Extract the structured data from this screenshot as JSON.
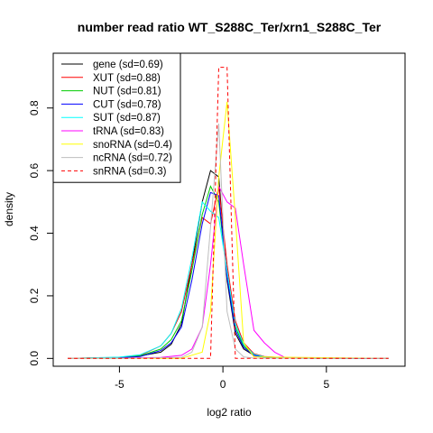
{
  "chart_data": {
    "type": "line",
    "title": "number read ratio WT_S288C_Ter/xrn1_S288C_Ter",
    "xlabel": "log2 ratio",
    "ylabel": "density",
    "xlim": [
      -8.2,
      8.8
    ],
    "ylim": [
      -0.025,
      0.975
    ],
    "xticks": [
      -5,
      0,
      5
    ],
    "yticks": [
      0.0,
      0.2,
      0.4,
      0.6,
      0.8
    ],
    "ytick_labels": [
      "0.0",
      "0.2",
      "0.4",
      "0.6",
      "0.8"
    ],
    "legend_position": "top-left",
    "series": [
      {
        "name": "gene (sd=0.69)",
        "color": "#000000",
        "dash": false,
        "x": [
          -7.5,
          -5,
          -4,
          -3,
          -2.5,
          -2,
          -1.5,
          -1,
          -0.6,
          -0.2,
          0.2,
          0.6,
          1,
          1.5,
          2,
          3,
          8
        ],
        "y": [
          0,
          0.003,
          0.008,
          0.02,
          0.045,
          0.11,
          0.3,
          0.5,
          0.6,
          0.58,
          0.25,
          0.08,
          0.03,
          0.01,
          0.004,
          0.001,
          0
        ]
      },
      {
        "name": "XUT (sd=0.88)",
        "color": "#ff0000",
        "dash": false,
        "x": [
          -7.5,
          -5,
          -4,
          -3,
          -2.5,
          -2,
          -1.5,
          -1,
          -0.6,
          -0.2,
          0.2,
          0.6,
          1,
          1.5,
          2,
          3,
          8
        ],
        "y": [
          0,
          0.003,
          0.01,
          0.04,
          0.08,
          0.15,
          0.3,
          0.45,
          0.43,
          0.55,
          0.3,
          0.12,
          0.05,
          0.015,
          0.006,
          0.002,
          0
        ]
      },
      {
        "name": "NUT (sd=0.81)",
        "color": "#00cc00",
        "dash": false,
        "x": [
          -7.5,
          -5,
          -4,
          -3,
          -2.5,
          -2,
          -1.5,
          -1,
          -0.6,
          -0.2,
          0.2,
          0.6,
          1,
          1.5,
          2,
          3,
          8
        ],
        "y": [
          0,
          0.003,
          0.008,
          0.03,
          0.06,
          0.12,
          0.28,
          0.46,
          0.55,
          0.5,
          0.26,
          0.1,
          0.04,
          0.012,
          0.005,
          0.001,
          0
        ]
      },
      {
        "name": "CUT (sd=0.78)",
        "color": "#0000ff",
        "dash": false,
        "x": [
          -7.5,
          -5,
          -4,
          -3,
          -2.5,
          -2,
          -1.5,
          -1,
          -0.6,
          -0.2,
          0.2,
          0.6,
          1,
          1.5,
          2,
          3,
          8
        ],
        "y": [
          0,
          0.002,
          0.006,
          0.025,
          0.05,
          0.1,
          0.25,
          0.43,
          0.53,
          0.52,
          0.26,
          0.09,
          0.035,
          0.01,
          0.004,
          0.001,
          0
        ]
      },
      {
        "name": "SUT (sd=0.87)",
        "color": "#00ffff",
        "dash": false,
        "x": [
          -7.5,
          -5,
          -4,
          -3,
          -2.5,
          -2,
          -1.5,
          -1,
          -0.6,
          -0.2,
          0.2,
          0.6,
          1,
          1.5,
          2,
          3,
          8
        ],
        "y": [
          0,
          0.004,
          0.012,
          0.04,
          0.08,
          0.16,
          0.32,
          0.5,
          0.47,
          0.45,
          0.28,
          0.11,
          0.045,
          0.013,
          0.005,
          0.002,
          0
        ]
      },
      {
        "name": "tRNA (sd=0.83)",
        "color": "#ff00ff",
        "dash": false,
        "x": [
          -7.5,
          -5,
          -3,
          -2,
          -1.5,
          -1,
          -0.6,
          -0.2,
          0.2,
          0.6,
          1,
          1.5,
          2,
          2.5,
          3,
          8
        ],
        "y": [
          0,
          0.001,
          0.003,
          0.01,
          0.03,
          0.1,
          0.3,
          0.55,
          0.5,
          0.48,
          0.3,
          0.09,
          0.05,
          0.02,
          0.003,
          0
        ]
      },
      {
        "name": "snoRNA (sd=0.4)",
        "color": "#ffff00",
        "dash": false,
        "x": [
          -7.5,
          -2,
          -1,
          -0.6,
          -0.2,
          0.2,
          0.6,
          1,
          1.5,
          8
        ],
        "y": [
          0,
          0,
          0.02,
          0.15,
          0.58,
          0.82,
          0.45,
          0.05,
          0.005,
          0
        ]
      },
      {
        "name": "ncRNA (sd=0.72)",
        "color": "#bebebe",
        "dash": false,
        "x": [
          -7.5,
          -5,
          -2,
          -1.5,
          -1,
          -0.6,
          -0.2,
          0.2,
          0.6,
          1,
          1.5,
          8
        ],
        "y": [
          0,
          0,
          0.003,
          0.02,
          0.1,
          0.42,
          0.75,
          0.15,
          0.03,
          0.005,
          0.001,
          0
        ]
      },
      {
        "name": "snRNA (sd=0.3)",
        "color": "#ff0000",
        "dash": true,
        "x": [
          -7.5,
          -0.6,
          -0.2,
          0.2,
          0.6,
          8
        ],
        "y": [
          0,
          0,
          0.93,
          0.93,
          0,
          0
        ]
      }
    ]
  }
}
